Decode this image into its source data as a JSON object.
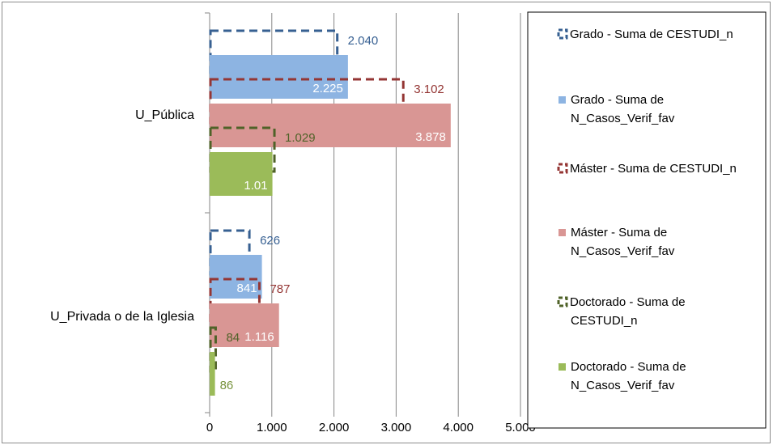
{
  "chart_data": {
    "type": "bar",
    "orientation": "horizontal",
    "categories": [
      "U_Pública",
      "U_Privada o de la Iglesia"
    ],
    "xlim": [
      0,
      5000
    ],
    "x_ticks": [
      "0",
      "1.000",
      "2.000",
      "3.000",
      "4.000",
      "5.000"
    ],
    "grid": "vertical",
    "legend_position": "right",
    "series": [
      {
        "name": "Grado - Suma de CESTUDI_n",
        "style": "dashed-outline",
        "color": "#376092",
        "label_color": "#376092",
        "values": [
          2040,
          626
        ],
        "labels": [
          "2.040",
          "626"
        ]
      },
      {
        "name": "Grado - Suma de N_Casos_Verif_fav",
        "style": "filled",
        "color": "#8db4e2",
        "label_color": "#ffffff",
        "values": [
          2225,
          841
        ],
        "labels": [
          "2.225",
          "841"
        ]
      },
      {
        "name": "Máster - Suma de CESTUDI_n",
        "style": "dashed-outline",
        "color": "#943634",
        "label_color": "#943634",
        "values": [
          3102,
          787
        ],
        "labels": [
          "3.102",
          "787"
        ]
      },
      {
        "name": "Máster - Suma de N_Casos_Verif_fav",
        "style": "filled",
        "color": "#d99694",
        "label_color": "#ffffff",
        "values": [
          3878,
          1116
        ],
        "labels": [
          "3.878",
          "1.116"
        ]
      },
      {
        "name": "Doctorado - Suma de CESTUDI_n",
        "style": "dashed-outline",
        "color": "#4f6228",
        "label_color": "#4f6228",
        "values": [
          1029,
          84
        ],
        "labels": [
          "1.029",
          "84"
        ]
      },
      {
        "name": "Doctorado - Suma de N_Casos_Verif_fav",
        "style": "filled",
        "color": "#9bbb59",
        "label_color_pub": "#ffffff",
        "label_color": "#77933c",
        "values": [
          1010,
          86
        ],
        "labels": [
          "1.01",
          "86"
        ]
      }
    ],
    "legend": [
      [
        "Grado - Suma de CESTUDI_n"
      ],
      [
        "Grado - Suma de",
        "N_Casos_Verif_fav"
      ],
      [
        "Máster - Suma de CESTUDI_n"
      ],
      [
        "Máster - Suma de",
        "N_Casos_Verif_fav"
      ],
      [
        "Doctorado - Suma de",
        "CESTUDI_n"
      ],
      [
        "Doctorado - Suma de",
        "N_Casos_Verif_fav"
      ]
    ]
  }
}
